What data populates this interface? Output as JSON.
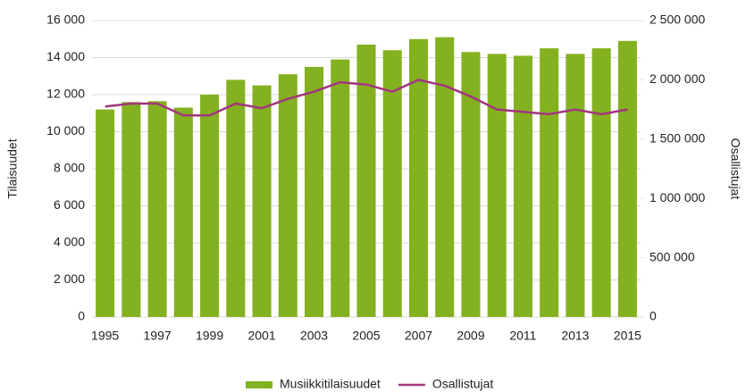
{
  "chart_data": {
    "type": "bar_line",
    "categories": [
      "1995",
      null,
      "1997",
      null,
      "1999",
      null,
      "2001",
      null,
      "2003",
      null,
      "2005",
      null,
      "2007",
      null,
      "2009",
      null,
      "2011",
      null,
      "2013",
      null,
      "2015"
    ],
    "series": [
      {
        "name": "Musiikkitilaisuudet",
        "type": "bar",
        "color": "#84b11f",
        "axis": "y",
        "values": [
          11200,
          11600,
          11650,
          11300,
          12000,
          12800,
          12500,
          13100,
          13500,
          13900,
          14700,
          14400,
          15000,
          15100,
          14300,
          14200,
          14100,
          14500,
          14200,
          14500,
          14900
        ]
      },
      {
        "name": "Osallistujat",
        "type": "line",
        "color": "#a2357f",
        "axis": "y2",
        "values": [
          1775000,
          1800000,
          1800000,
          1700000,
          1700000,
          1800000,
          1760000,
          1840000,
          1900000,
          1980000,
          1960000,
          1900000,
          2000000,
          1950000,
          1860000,
          1750000,
          1730000,
          1710000,
          1750000,
          1710000,
          1750000
        ]
      }
    ],
    "ylabel": "Tilaisuudet",
    "y2label": "Osallistujat",
    "ylim": [
      0,
      16000
    ],
    "yticks": [
      0,
      {
        "value": 2000,
        "label": "2 000"
      },
      {
        "value": 4000,
        "label": "4 000"
      },
      {
        "value": 6000,
        "label": "6 000"
      },
      {
        "value": 8000,
        "label": "8 000"
      },
      {
        "value": 10000,
        "label": "10 000"
      },
      {
        "value": 12000,
        "label": "12 000"
      },
      {
        "value": 14000,
        "label": "14 000"
      },
      {
        "value": 16000,
        "label": "16 000"
      }
    ],
    "y2lim": [
      0,
      2500000
    ],
    "y2ticks": [
      0,
      {
        "value": 500000,
        "label": "500 000"
      },
      {
        "value": 1000000,
        "label": "1 000 000"
      },
      {
        "value": 1500000,
        "label": "1 500 000"
      },
      {
        "value": 2000000,
        "label": "2 000 000"
      },
      {
        "value": 2500000,
        "label": "2 500 000"
      }
    ],
    "grid": true,
    "legend": "bottom"
  }
}
